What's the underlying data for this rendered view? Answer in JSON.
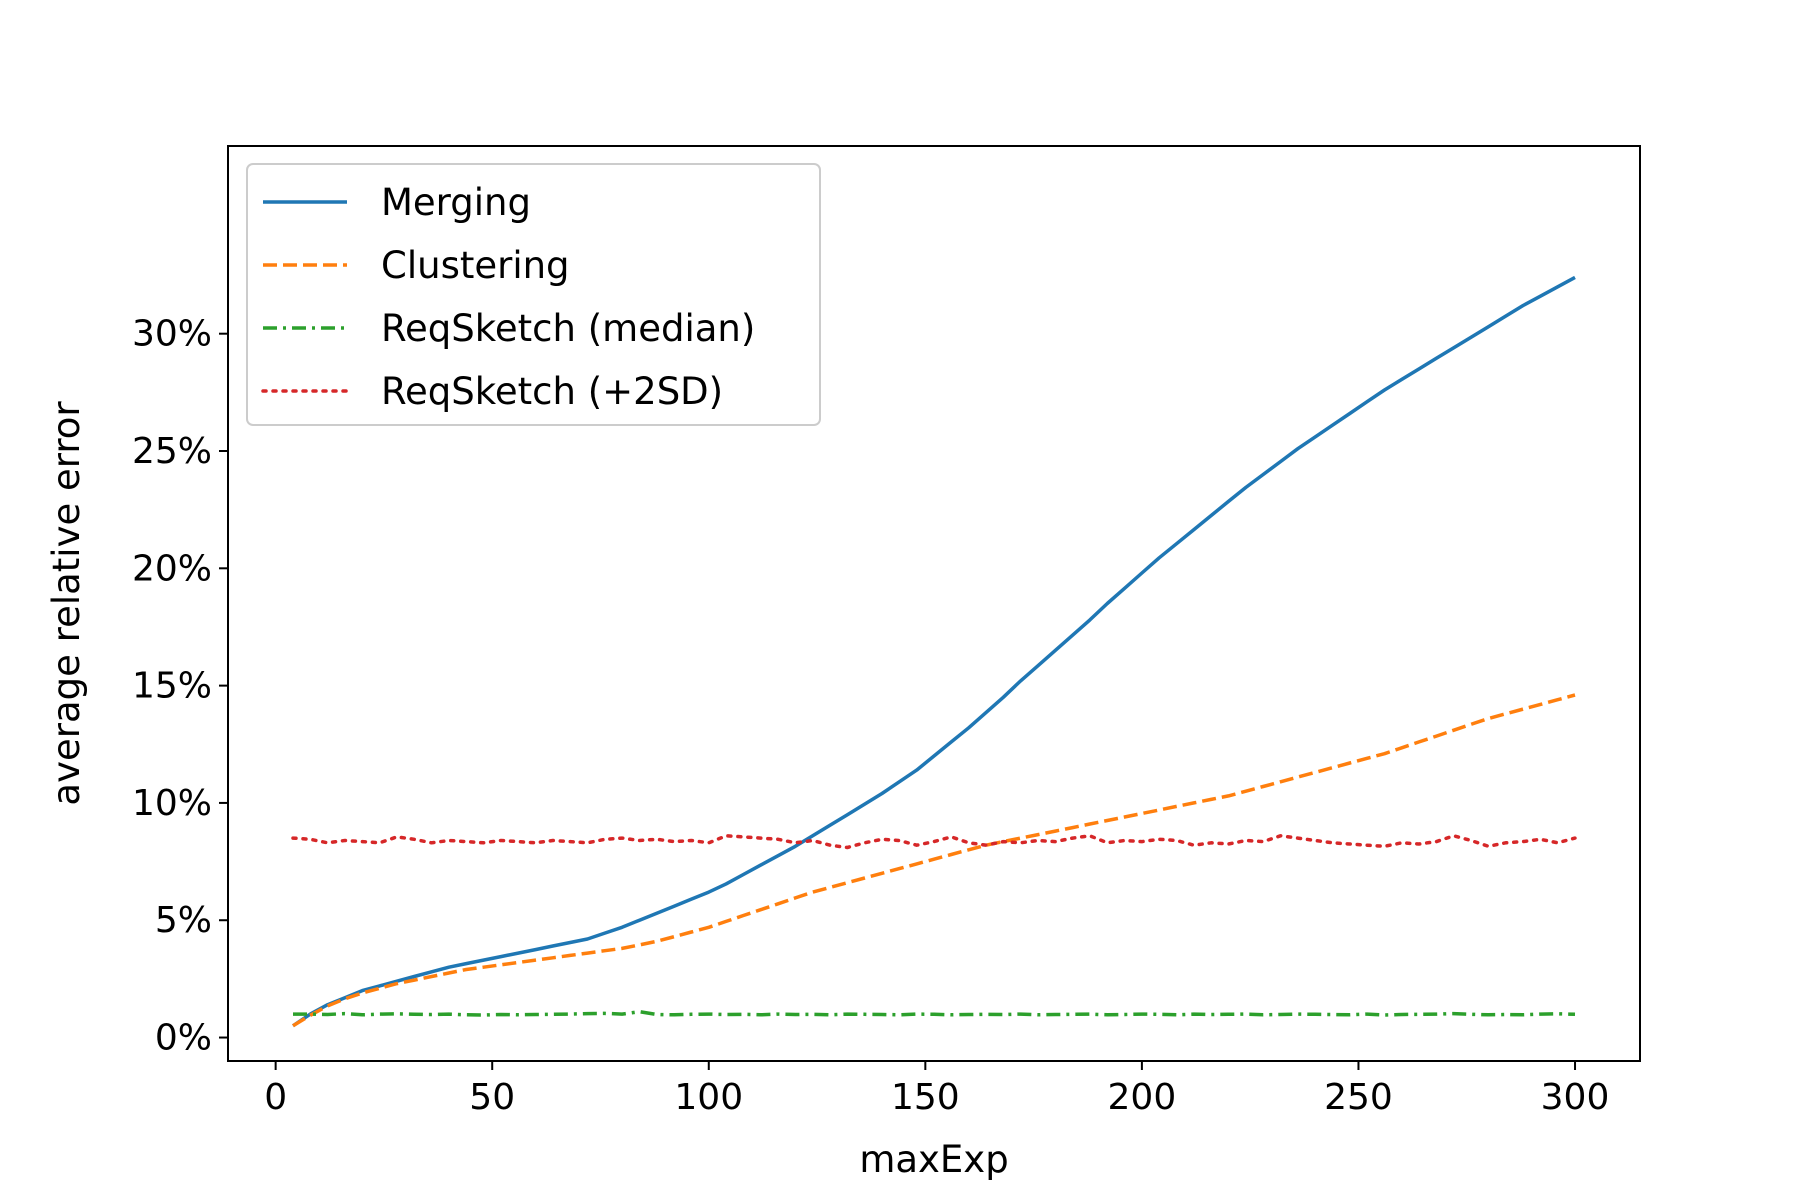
{
  "chart_data": {
    "type": "line",
    "xlabel": "maxExp",
    "ylabel": "average relative error",
    "xlim": [
      -11,
      315
    ],
    "ylim": [
      -1,
      38
    ],
    "x_ticks": [
      0,
      50,
      100,
      150,
      200,
      250,
      300
    ],
    "x_tick_labels": [
      "0",
      "50",
      "100",
      "150",
      "200",
      "250",
      "300"
    ],
    "y_ticks": [
      0,
      5,
      10,
      15,
      20,
      25,
      30
    ],
    "y_tick_labels": [
      "0%",
      "5%",
      "10%",
      "15%",
      "20%",
      "25%",
      "30%"
    ],
    "legend_position": "upper-left",
    "grid": false,
    "x": [
      4,
      8,
      12,
      16,
      20,
      24,
      28,
      32,
      36,
      40,
      44,
      48,
      52,
      56,
      60,
      64,
      68,
      72,
      76,
      80,
      84,
      88,
      92,
      96,
      100,
      104,
      108,
      112,
      116,
      120,
      124,
      128,
      132,
      136,
      140,
      144,
      148,
      152,
      156,
      160,
      164,
      168,
      172,
      176,
      180,
      184,
      188,
      192,
      196,
      200,
      204,
      208,
      212,
      216,
      220,
      224,
      228,
      232,
      236,
      240,
      244,
      248,
      252,
      256,
      260,
      264,
      268,
      272,
      276,
      280,
      284,
      288,
      292,
      296,
      300
    ],
    "series": [
      {
        "name": "Merging",
        "color": "#1f77b4",
        "style": "solid",
        "values": [
          0.5,
          1.0,
          1.4,
          1.7,
          2.0,
          2.2,
          2.4,
          2.6,
          2.8,
          3.0,
          3.15,
          3.3,
          3.45,
          3.6,
          3.75,
          3.9,
          4.05,
          4.2,
          4.45,
          4.7,
          5.0,
          5.3,
          5.6,
          5.9,
          6.2,
          6.55,
          6.95,
          7.35,
          7.75,
          8.15,
          8.6,
          9.05,
          9.5,
          9.95,
          10.4,
          10.9,
          11.4,
          12.0,
          12.6,
          13.2,
          13.85,
          14.5,
          15.2,
          15.85,
          16.5,
          17.15,
          17.8,
          18.5,
          19.15,
          19.8,
          20.45,
          21.05,
          21.65,
          22.25,
          22.85,
          23.45,
          24.0,
          24.55,
          25.1,
          25.6,
          26.1,
          26.6,
          27.1,
          27.6,
          28.05,
          28.5,
          28.95,
          29.4,
          29.85,
          30.3,
          30.75,
          31.2,
          31.6,
          32.0,
          32.4
        ]
      },
      {
        "name": "Clustering",
        "color": "#ff7f0e",
        "style": "dashed",
        "values": [
          0.5,
          0.95,
          1.35,
          1.65,
          1.9,
          2.1,
          2.3,
          2.45,
          2.6,
          2.75,
          2.9,
          3.0,
          3.1,
          3.2,
          3.3,
          3.4,
          3.5,
          3.6,
          3.7,
          3.8,
          3.95,
          4.1,
          4.3,
          4.5,
          4.7,
          4.95,
          5.2,
          5.45,
          5.7,
          5.95,
          6.2,
          6.4,
          6.6,
          6.8,
          7.0,
          7.2,
          7.4,
          7.6,
          7.8,
          8.0,
          8.2,
          8.35,
          8.5,
          8.65,
          8.8,
          8.95,
          9.1,
          9.25,
          9.4,
          9.55,
          9.7,
          9.85,
          10.0,
          10.15,
          10.3,
          10.5,
          10.7,
          10.9,
          11.1,
          11.3,
          11.5,
          11.7,
          11.9,
          12.1,
          12.35,
          12.6,
          12.85,
          13.1,
          13.35,
          13.6,
          13.8,
          14.0,
          14.2,
          14.4,
          14.6
        ]
      },
      {
        "name": "ReqSketch (median)",
        "color": "#2ca02c",
        "style": "dashdot",
        "values": [
          1.0,
          1.0,
          0.98,
          1.02,
          0.97,
          1.0,
          1.01,
          0.99,
          0.98,
          1.0,
          0.97,
          0.96,
          0.98,
          0.97,
          0.98,
          0.99,
          1.0,
          1.02,
          1.03,
          1.0,
          1.1,
          0.98,
          0.97,
          0.99,
          1.0,
          0.98,
          0.99,
          0.97,
          1.0,
          0.98,
          0.99,
          0.97,
          1.0,
          0.99,
          0.98,
          0.97,
          1.0,
          0.99,
          0.97,
          0.98,
          0.99,
          0.98,
          1.0,
          0.97,
          0.98,
          0.99,
          1.0,
          0.97,
          0.98,
          1.0,
          0.99,
          0.97,
          1.0,
          0.98,
          0.99,
          1.0,
          0.97,
          0.98,
          1.0,
          0.99,
          0.98,
          0.97,
          1.0,
          0.96,
          0.98,
          0.99,
          1.0,
          1.02,
          0.99,
          0.97,
          0.98,
          0.97,
          1.0,
          1.01,
          0.99
        ]
      },
      {
        "name": "ReqSketch (+2SD)",
        "color": "#d62728",
        "style": "dotted",
        "values": [
          8.5,
          8.45,
          8.3,
          8.4,
          8.35,
          8.3,
          8.55,
          8.45,
          8.3,
          8.4,
          8.35,
          8.3,
          8.4,
          8.35,
          8.3,
          8.4,
          8.35,
          8.3,
          8.45,
          8.5,
          8.4,
          8.45,
          8.35,
          8.4,
          8.3,
          8.6,
          8.55,
          8.5,
          8.45,
          8.3,
          8.4,
          8.2,
          8.1,
          8.3,
          8.45,
          8.4,
          8.2,
          8.35,
          8.55,
          8.3,
          8.2,
          8.35,
          8.3,
          8.4,
          8.35,
          8.5,
          8.6,
          8.3,
          8.4,
          8.35,
          8.45,
          8.4,
          8.2,
          8.3,
          8.25,
          8.4,
          8.35,
          8.6,
          8.5,
          8.4,
          8.3,
          8.25,
          8.2,
          8.15,
          8.3,
          8.25,
          8.35,
          8.6,
          8.4,
          8.15,
          8.3,
          8.35,
          8.45,
          8.3,
          8.5
        ]
      }
    ]
  }
}
